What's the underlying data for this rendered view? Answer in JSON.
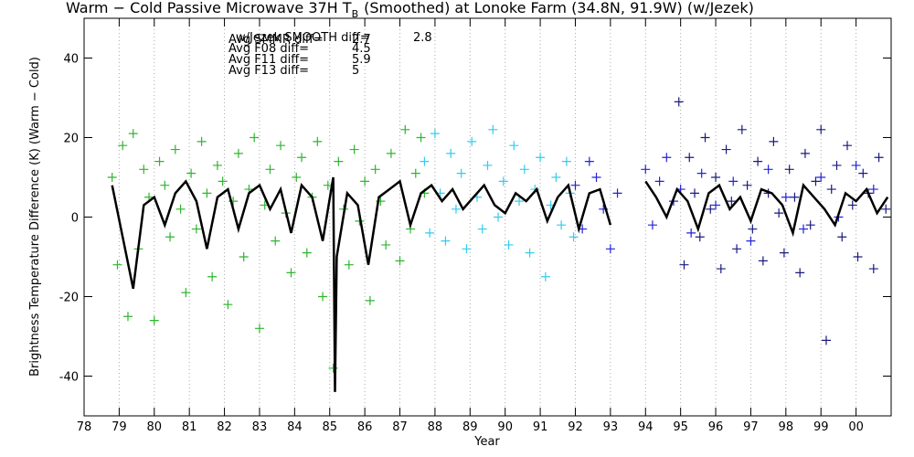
{
  "chart_data": {
    "type": "scatter",
    "title": "Warm − Cold Passive Microwave 37H T",
    "title_subscript": "B",
    "title_suffix": "(Smoothed) at Lonoke Farm (34.8N, 91.9W) (w/Jezek)",
    "x_label": "Year",
    "y_label": "Brightness Temperature Difference (K) (Warm − Cold)",
    "xlim": [
      78,
      101
    ],
    "ylim": [
      -50,
      50
    ],
    "xticks": [
      78,
      79,
      80,
      81,
      82,
      83,
      84,
      85,
      86,
      87,
      88,
      89,
      90,
      91,
      92,
      93,
      94,
      95,
      96,
      97,
      98,
      99,
      {
        "value": 100,
        "label": "00"
      }
    ],
    "yticks": [
      -40,
      -20,
      0,
      20,
      40
    ],
    "grid": true,
    "annotations": [
      {
        "text": "w/Jezek SMOOTH diff=",
        "value": 2.8,
        "color": "#999999"
      },
      {
        "text": "Avg SMMR diff=",
        "value": 2.7,
        "color": "#2fb52f"
      },
      {
        "text": "Avg F08 diff=",
        "value": 4.5,
        "color": "#33ccee"
      },
      {
        "text": "Avg F11 diff=",
        "value": 5.9,
        "color": "#2222dd"
      },
      {
        "text": "Avg F13 diff=",
        "value": 5.0,
        "color": "#1a1a80"
      }
    ],
    "series": [
      {
        "mode": "markers",
        "color": "#2fb52f",
        "x": [
          78.8,
          78.95,
          79.1,
          79.25,
          79.4,
          79.55,
          79.7,
          79.85,
          80.0,
          80.15,
          80.3,
          80.45,
          80.6,
          80.75,
          80.9,
          81.05,
          81.2,
          81.35,
          81.5,
          81.65,
          81.8,
          81.95,
          82.1,
          82.25,
          82.4,
          82.55,
          82.7,
          82.85,
          83.0,
          83.15,
          83.3,
          83.45,
          83.6,
          83.75,
          83.9,
          84.05,
          84.2,
          84.35,
          84.5,
          84.65,
          84.8,
          84.95,
          85.1,
          85.25,
          85.4,
          85.55,
          85.7,
          85.85,
          86.0,
          86.15,
          86.3,
          86.45,
          86.6,
          86.75,
          87.0,
          87.15,
          87.3,
          87.45,
          87.6,
          87.7
        ],
        "values": [
          10,
          -12,
          18,
          -25,
          21,
          -8,
          12,
          5,
          -26,
          14,
          8,
          -5,
          17,
          2,
          -19,
          11,
          -3,
          19,
          6,
          -15,
          13,
          9,
          -22,
          4,
          16,
          -10,
          7,
          20,
          -28,
          3,
          12,
          -6,
          18,
          1,
          -14,
          10,
          15,
          -9,
          5,
          19,
          -20,
          8,
          -38,
          14,
          2,
          -12,
          17,
          -1,
          9,
          -21,
          12,
          4,
          -7,
          16,
          -11,
          22,
          -3,
          11,
          20,
          6
        ]
      },
      {
        "mode": "markers",
        "color": "#33ccee",
        "x": [
          87.7,
          87.85,
          88.0,
          88.15,
          88.3,
          88.45,
          88.6,
          88.75,
          88.9,
          89.05,
          89.2,
          89.35,
          89.5,
          89.65,
          89.8,
          89.95,
          90.1,
          90.25,
          90.4,
          90.55,
          90.7,
          90.85,
          91.0,
          91.15,
          91.3,
          91.45,
          91.6,
          91.75,
          91.85,
          91.95
        ],
        "values": [
          14,
          -4,
          21,
          6,
          -6,
          16,
          2,
          11,
          -8,
          19,
          5,
          -3,
          13,
          22,
          0,
          9,
          -7,
          18,
          4,
          12,
          -9,
          7,
          15,
          -15,
          3,
          10,
          -2,
          14,
          6,
          -5
        ]
      },
      {
        "mode": "markers",
        "color": "#2222dd",
        "x": [
          92.0,
          92.2,
          92.4,
          92.6,
          92.8,
          93.0,
          93.2,
          94.0,
          94.2,
          94.4,
          94.6,
          94.8,
          95.0,
          95.3,
          95.6,
          96.0,
          96.5,
          97.0,
          97.5,
          98.0,
          98.5,
          99.0,
          99.5,
          100.0,
          100.5
        ],
        "values": [
          8,
          -3,
          14,
          10,
          2,
          -8,
          6,
          12,
          -2,
          9,
          15,
          4,
          7,
          -4,
          11,
          3,
          9,
          -6,
          12,
          5,
          -3,
          10,
          0,
          13,
          7
        ]
      },
      {
        "mode": "markers",
        "color": "#1a1a80",
        "x": [
          94.95,
          95.1,
          95.25,
          95.4,
          95.55,
          95.7,
          95.85,
          96.0,
          96.15,
          96.3,
          96.45,
          96.6,
          96.75,
          96.9,
          97.05,
          97.2,
          97.35,
          97.5,
          97.65,
          97.8,
          97.95,
          98.1,
          98.25,
          98.4,
          98.55,
          98.7,
          98.85,
          99.0,
          99.15,
          99.3,
          99.45,
          99.6,
          99.75,
          99.9,
          100.05,
          100.2,
          100.35,
          100.5,
          100.65,
          100.85
        ],
        "values": [
          29,
          -12,
          15,
          6,
          -5,
          20,
          2,
          10,
          -13,
          17,
          4,
          -8,
          22,
          8,
          -3,
          14,
          -11,
          6,
          19,
          1,
          -9,
          12,
          5,
          -14,
          16,
          -2,
          9,
          22,
          -31,
          7,
          13,
          -5,
          18,
          3,
          -10,
          11,
          6,
          -13,
          15,
          2
        ]
      },
      {
        "mode": "line",
        "color": "#000000",
        "x": [
          78.8,
          79.1,
          79.4,
          79.7,
          80.0,
          80.3,
          80.6,
          80.9,
          81.2,
          81.5,
          81.8,
          82.1,
          82.4,
          82.7,
          83.0,
          83.3,
          83.6,
          83.9,
          84.2,
          84.5,
          84.8,
          85.1,
          85.15,
          85.2,
          85.5,
          85.8,
          86.1,
          86.4,
          86.7,
          87.0,
          87.3,
          87.6,
          87.9,
          88.2,
          88.5,
          88.8,
          89.1,
          89.4,
          89.7,
          90.0,
          90.3,
          90.6,
          90.9,
          91.2,
          91.5,
          91.8,
          92.1,
          92.4,
          92.7,
          93.0,
          93.5,
          94.0,
          94.3,
          94.6,
          94.9,
          95.2,
          95.5,
          95.8,
          96.1,
          96.4,
          96.7,
          97.0,
          97.3,
          97.6,
          97.9,
          98.2,
          98.5,
          98.8,
          99.1,
          99.4,
          99.7,
          100.0,
          100.3,
          100.6,
          100.9
        ],
        "values": [
          8,
          -5,
          -18,
          3,
          5,
          -2,
          6,
          9,
          4,
          -8,
          5,
          7,
          -3,
          6,
          8,
          2,
          7,
          -4,
          8,
          5,
          -6,
          10,
          -44,
          -10,
          6,
          3,
          -12,
          5,
          7,
          9,
          -2,
          6,
          8,
          4,
          7,
          2,
          5,
          8,
          3,
          1,
          6,
          4,
          7,
          -1,
          5,
          8,
          -3,
          6,
          7,
          -2,
          null,
          9,
          5,
          0,
          7,
          4,
          -3,
          6,
          8,
          2,
          5,
          -1,
          7,
          6,
          3,
          -4,
          8,
          5,
          2,
          -2,
          6,
          4,
          7,
          1,
          5
        ]
      }
    ]
  }
}
